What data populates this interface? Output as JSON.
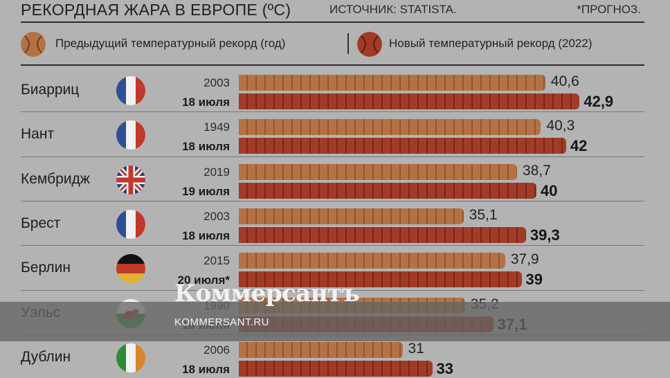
{
  "header": {
    "title": "РЕКОРДНАЯ ЖАРА В ЕВРОПЕ (ºC)",
    "source": "ИСТОЧНИК: STATISTA.",
    "note": "*ПРОГНОЗ."
  },
  "legend": {
    "previous": "Предыдущий температурный рекорд (год)",
    "new": "Новый температурный рекорд (2022)",
    "previous_color": "#b47244",
    "new_color": "#a13b28"
  },
  "chart_data": {
    "type": "bar",
    "orientation": "horizontal",
    "categories": [
      "Биарриц",
      "Нант",
      "Кембридж",
      "Брест",
      "Берлин",
      "Уэльс",
      "Дублин"
    ],
    "series": [
      {
        "name": "Предыдущий температурный рекорд (год)",
        "values": [
          40.6,
          40.3,
          38.7,
          35.1,
          37.9,
          35.2,
          31
        ]
      },
      {
        "name": "Новый температурный рекорд (2022)",
        "values": [
          42.9,
          42,
          40,
          39.3,
          39,
          37.1,
          33
        ]
      }
    ],
    "previous_years": [
      "2003",
      "1949",
      "2019",
      "2003",
      "2015",
      "1990",
      "2006"
    ],
    "new_dates": [
      "18 июля",
      "18 июля",
      "19 июля",
      "18 июля",
      "20 июля*",
      "18 июля",
      "18 июля"
    ],
    "value_labels_previous": [
      "40,6",
      "40,3",
      "38,7",
      "35,1",
      "37,9",
      "35,2",
      "31"
    ],
    "value_labels_new": [
      "42,9",
      "42",
      "40",
      "39,3",
      "39",
      "37,1",
      "33"
    ],
    "flags": [
      "france-flag-icon",
      "france-flag-icon",
      "uk-flag-icon",
      "france-flag-icon",
      "germany-flag-icon",
      "wales-flag-icon",
      "ireland-flag-icon"
    ]
  },
  "watermark": {
    "logo": "Коммерсантъ",
    "url": "KOMMERSANT.RU"
  }
}
